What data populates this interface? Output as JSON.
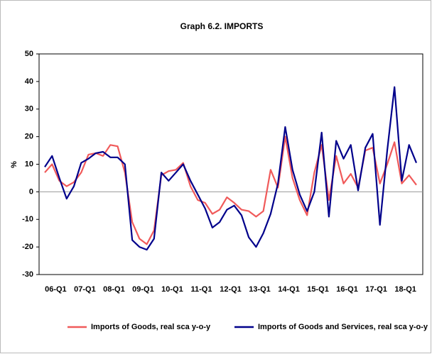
{
  "chart_data": {
    "type": "line",
    "title": "Graph 6.2. IMPORTS",
    "y_label": "%",
    "categories": [
      "06-Q1",
      null,
      null,
      null,
      "07-Q1",
      null,
      null,
      null,
      "08-Q1",
      null,
      null,
      null,
      "09-Q1",
      null,
      null,
      null,
      "10-Q1",
      null,
      null,
      null,
      "11-Q1",
      null,
      null,
      null,
      "12-Q1",
      null,
      null,
      null,
      "13-Q1",
      null,
      null,
      null,
      "14-Q1",
      null,
      null,
      null,
      "15-Q1",
      null,
      null,
      null,
      "16-Q1",
      null,
      null,
      null,
      "17-Q1",
      null,
      null,
      null,
      "18-Q1",
      null,
      null,
      null
    ],
    "series": [
      {
        "name": "Imports of Goods, real sca y-o-y",
        "color": "#f05a5a",
        "values": [
          7,
          10,
          4,
          2,
          3.5,
          7,
          13.5,
          14,
          13,
          17,
          16.5,
          7,
          -11,
          -17,
          -19,
          -14,
          6,
          7.5,
          8,
          10.5,
          2,
          -3,
          -4,
          -8,
          -6.5,
          -2,
          -4,
          -6.5,
          -7,
          -9,
          -7,
          8,
          1.5,
          20,
          5,
          -3,
          -8.5,
          7,
          17,
          -3,
          13,
          3,
          6.5,
          1.5,
          15,
          16,
          3,
          10,
          18,
          3,
          6,
          2.5
        ]
      },
      {
        "name": "Imports of Goods and Services, real sca y-o-y",
        "color": "#00008b",
        "values": [
          9,
          13,
          5,
          -2.5,
          2,
          10.5,
          12,
          14,
          14.5,
          12.5,
          12.5,
          10,
          -17.5,
          -20,
          -21,
          -17,
          7,
          4,
          7,
          10,
          4,
          -1,
          -6,
          -13,
          -11,
          -6.5,
          -5,
          -8.5,
          -16.5,
          -20,
          -15,
          -8,
          3,
          23.5,
          8,
          -1,
          -7,
          0,
          21.5,
          -9,
          18.5,
          12,
          17,
          0.5,
          16,
          21,
          -12,
          15,
          38,
          4,
          17,
          10.5
        ]
      }
    ],
    "ylim": [
      -30,
      50
    ],
    "yticks": [
      -30,
      -20,
      -10,
      0,
      10,
      20,
      30,
      40,
      50
    ],
    "legend": "bottom"
  }
}
